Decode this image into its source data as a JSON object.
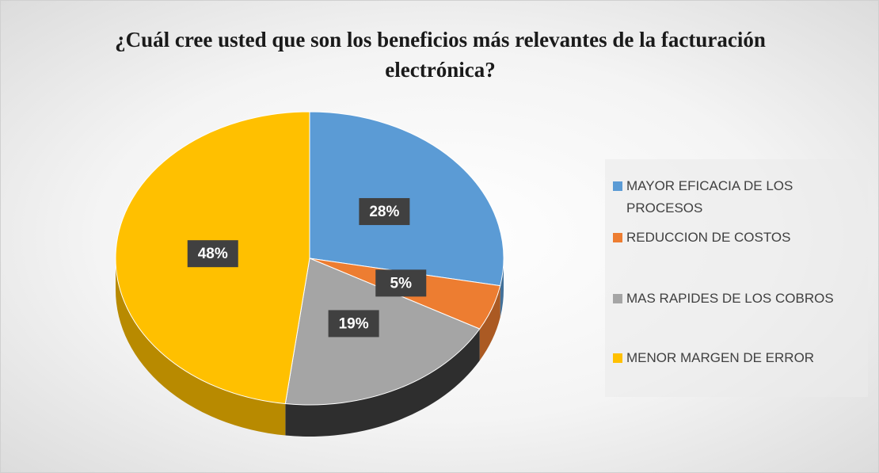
{
  "chart_data": {
    "type": "pie",
    "title": "¿Cuál cree usted que son los beneficios más relevantes de la facturación electrónica?",
    "categories": [
      "MAYOR EFICACIA DE LOS PROCESOS",
      "REDUCCION DE COSTOS",
      "MAS RAPIDES DE LOS COBROS",
      "MENOR MARGEN DE ERROR"
    ],
    "values": [
      28,
      5,
      19,
      48
    ],
    "value_labels": [
      "28%",
      "5%",
      "19%",
      "48%"
    ],
    "colors": [
      "#5b9bd5",
      "#ed7d31",
      "#a5a5a5",
      "#ffc000"
    ],
    "legend": "right"
  }
}
